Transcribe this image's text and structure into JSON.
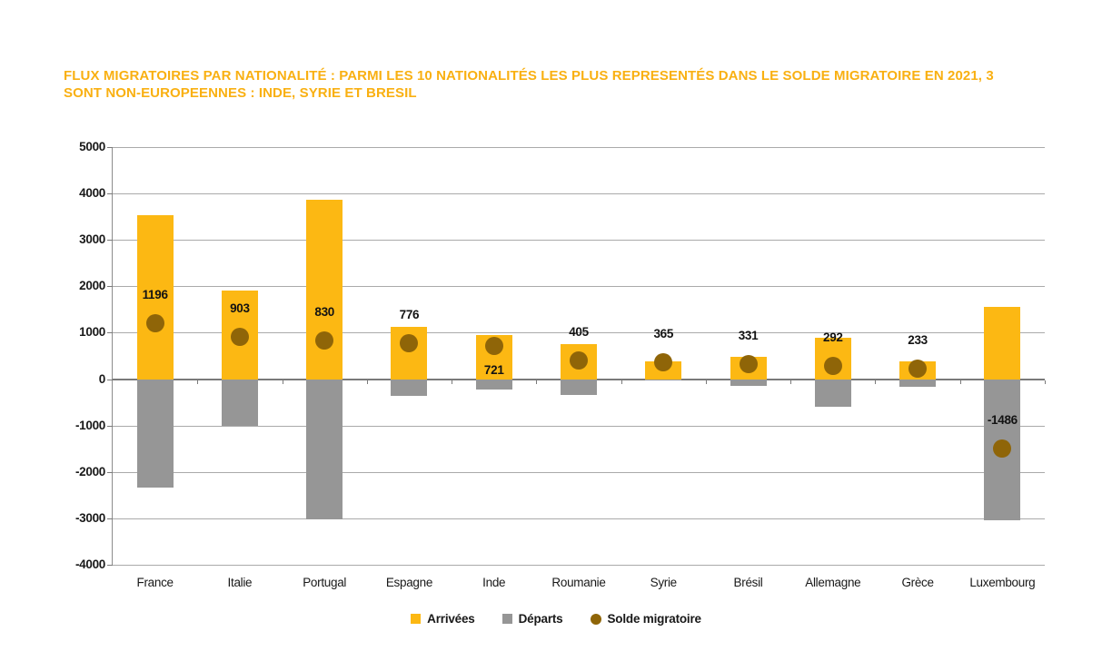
{
  "title": {
    "line1": "FLUX MIGRATOIRES PAR NATIONALITÉ : PARMI LES 10 NATIONALITÉS LES PLUS REPRESENTÉS DANS LE SOLDE MIGRATOIRE EN 2021, 3",
    "line2": "SONT NON-EUROPEENNES : INDE, SYRIE ET BRESIL"
  },
  "colors": {
    "title_text": "#F9B012",
    "arrivals_bar": "#FCB813",
    "departures_bar": "#969696",
    "solde_dot": "#8F6508",
    "gridline": "#AAAAAA",
    "zero_line": "#7A7A7A",
    "axis_text": "#191919"
  },
  "chart_data": {
    "type": "bar",
    "title": "Flux migratoires par nationalité — solde migratoire 2021",
    "categories": [
      "France",
      "Italie",
      "Portugal",
      "Espagne",
      "Inde",
      "Roumanie",
      "Syrie",
      "Brésil",
      "Allemagne",
      "Grèce",
      "Luxembourg"
    ],
    "series": [
      {
        "name": "Arrivées",
        "render": "bar",
        "color_key": "arrivals_bar",
        "values": [
          3540,
          1903,
          3860,
          1135,
          950,
          745,
          380,
          480,
          885,
          390,
          1550
        ]
      },
      {
        "name": "Départs",
        "render": "bar",
        "color_key": "departures_bar",
        "values": [
          -2344,
          -1000,
          -3030,
          -359,
          -229,
          -340,
          -15,
          -149,
          -593,
          -157,
          -3036
        ]
      },
      {
        "name": "Solde migratoire",
        "render": "point",
        "color_key": "solde_dot",
        "values": [
          1196,
          903,
          830,
          776,
          721,
          405,
          365,
          331,
          292,
          233,
          -1486
        ],
        "data_labels": [
          "1196",
          "903",
          "830",
          "776",
          "721",
          "405",
          "365",
          "331",
          "292",
          "233",
          "-1486"
        ],
        "label_positions": [
          "above",
          "above",
          "above",
          "above",
          "below",
          "above",
          "above",
          "above",
          "above",
          "above",
          "above"
        ]
      }
    ],
    "ylim": [
      -4000,
      5000
    ],
    "ytick_labels": [
      "5000",
      "4000",
      "3000",
      "2000",
      "1000",
      "0",
      "-1000",
      "-2000",
      "-3000",
      "-4000"
    ],
    "grid": true,
    "legend_position": "bottom"
  },
  "legend": {
    "items": [
      {
        "label": "Arrivées",
        "marker": "square",
        "color_key": "arrivals_bar"
      },
      {
        "label": "Départs",
        "marker": "square",
        "color_key": "departures_bar"
      },
      {
        "label": "Solde migratoire",
        "marker": "circle",
        "color_key": "solde_dot"
      }
    ]
  }
}
